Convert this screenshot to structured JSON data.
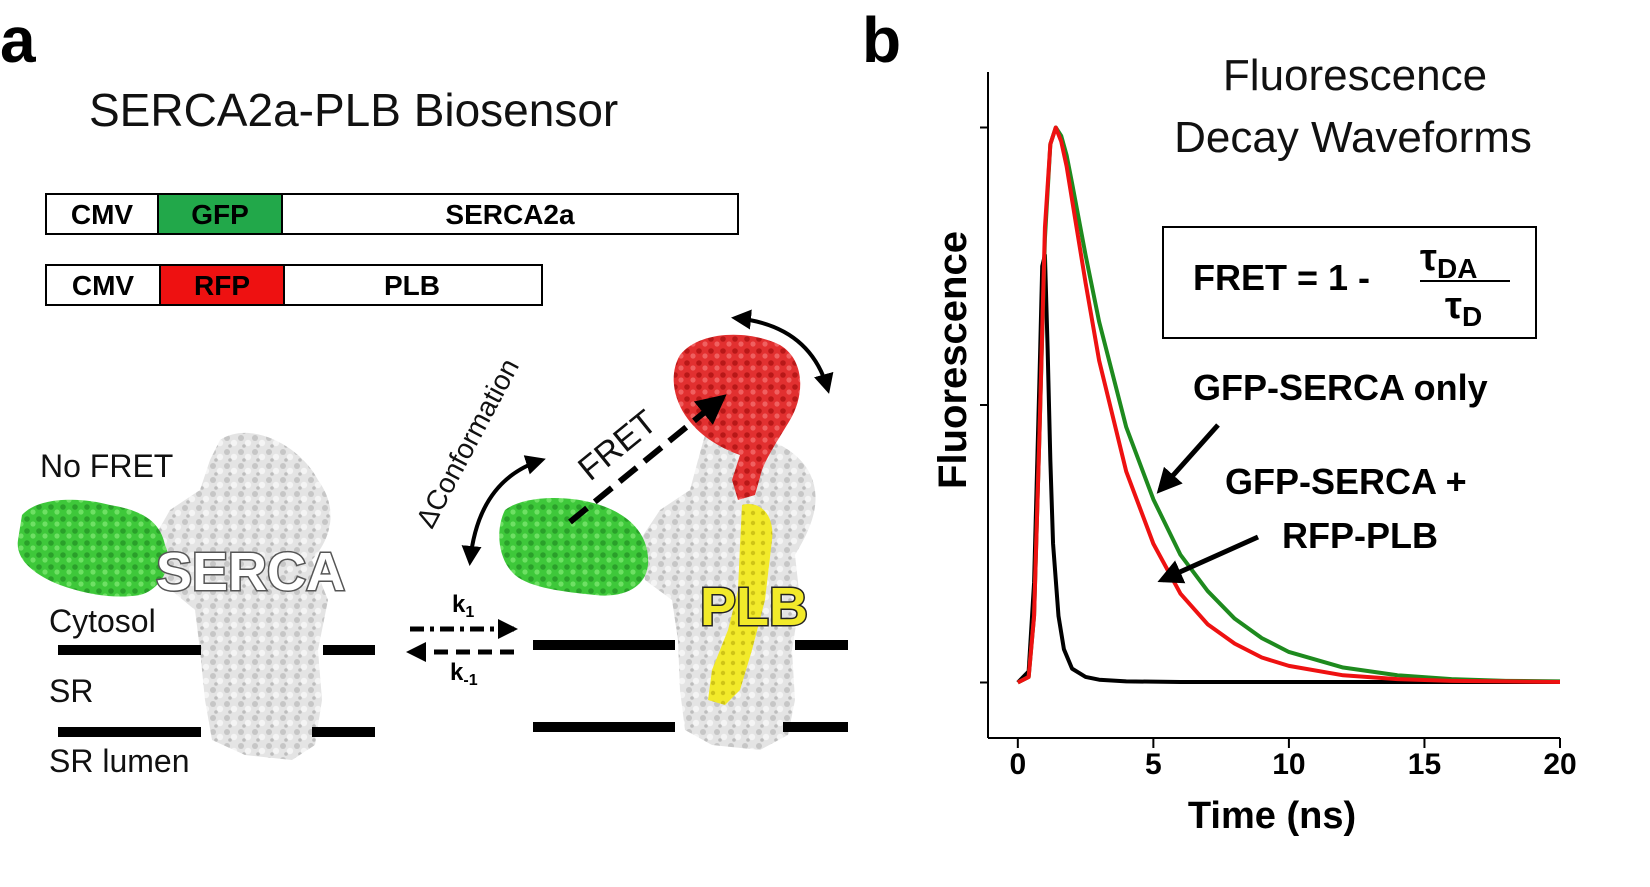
{
  "panel_a": {
    "letter": "a",
    "title": "SERCA2a-PLB Biosensor",
    "constructs": [
      {
        "promoter": "CMV",
        "tag": "GFP",
        "tag_color": "#22a84a",
        "gene": "SERCA2a"
      },
      {
        "promoter": "CMV",
        "tag": "RFP",
        "tag_color": "#ee1111",
        "gene": "PLB"
      }
    ],
    "labels": {
      "no_fret": "No FRET",
      "serca": "SERCA",
      "cytosol": "Cytosol",
      "sr": "SR",
      "sr_lumen": "SR lumen",
      "delta_conformation": "ΔConformation",
      "fret": "FRET",
      "plb": "PLB",
      "k1_main": "k",
      "k1_sub": "1",
      "km1_main": "k",
      "km1_sub": "-1"
    },
    "colors": {
      "gfp_protein": "#3ec83a",
      "rfp_protein": "#e23030",
      "plb_protein": "#f2ea2a",
      "serca_protein": "#d8d8d8",
      "membrane": "#000000"
    },
    "icons": [
      "double-arrow-icon",
      "dashed-arrow-icon",
      "equilibrium-arrows-icon"
    ]
  },
  "panel_b": {
    "letter": "b",
    "title_line1": "Fluorescence",
    "title_line2": "Decay Waveforms",
    "equation": {
      "lhs": "FRET = 1 -",
      "num_symbol": "τ",
      "num_sub": "DA",
      "den_symbol": "τ",
      "den_sub": "D"
    },
    "annotations": {
      "green_label": "GFP-SERCA only",
      "red_label_line1": "GFP-SERCA +",
      "red_label_line2": "RFP-PLB"
    }
  },
  "chart_data": {
    "type": "line",
    "title": "Fluorescence Decay Waveforms",
    "xlabel": "Time (ns)",
    "ylabel": "Fluorescence",
    "xlim": [
      -1.1,
      20
    ],
    "xticks": [
      0,
      5,
      10,
      15,
      20
    ],
    "ylim": [
      -0.1,
      1.1
    ],
    "yticks_unlabeled": [
      0,
      0.5,
      1.0
    ],
    "grid": false,
    "series": [
      {
        "color": "#000000",
        "x": [
          0,
          0.4,
          0.6,
          0.8,
          0.9,
          1.0,
          1.1,
          1.2,
          1.3,
          1.5,
          1.7,
          2.0,
          2.5,
          3.0,
          4.0,
          6.0,
          10.0,
          20.0
        ],
        "y": [
          0,
          0.02,
          0.18,
          0.55,
          0.75,
          0.77,
          0.6,
          0.4,
          0.25,
          0.12,
          0.06,
          0.025,
          0.01,
          0.005,
          0.002,
          0.001,
          0.001,
          0.001
        ]
      },
      {
        "name": "GFP-SERCA only",
        "color": "#1e8a1e",
        "x": [
          0,
          0.4,
          0.6,
          0.8,
          1.0,
          1.2,
          1.4,
          1.6,
          1.8,
          2.0,
          2.5,
          3.0,
          4.0,
          5.0,
          6.0,
          7.0,
          8.0,
          9.0,
          10.0,
          12.0,
          14.0,
          16.0,
          18.0,
          20.0
        ],
        "y": [
          0,
          0.01,
          0.12,
          0.45,
          0.8,
          0.97,
          1.0,
          0.985,
          0.95,
          0.9,
          0.77,
          0.65,
          0.46,
          0.33,
          0.23,
          0.165,
          0.115,
          0.08,
          0.055,
          0.027,
          0.013,
          0.006,
          0.003,
          0.002
        ]
      },
      {
        "name": "GFP-SERCA + RFP-PLB",
        "color": "#ee1111",
        "x": [
          0,
          0.4,
          0.6,
          0.8,
          1.0,
          1.2,
          1.4,
          1.6,
          1.8,
          2.0,
          2.5,
          3.0,
          4.0,
          5.0,
          6.0,
          7.0,
          8.0,
          9.0,
          10.0,
          12.0,
          14.0,
          16.0,
          18.0,
          20.0
        ],
        "y": [
          0,
          0.01,
          0.12,
          0.45,
          0.82,
          0.97,
          1.0,
          0.975,
          0.93,
          0.87,
          0.72,
          0.58,
          0.38,
          0.25,
          0.16,
          0.105,
          0.07,
          0.045,
          0.03,
          0.013,
          0.006,
          0.003,
          0.002,
          0.001
        ]
      }
    ]
  }
}
